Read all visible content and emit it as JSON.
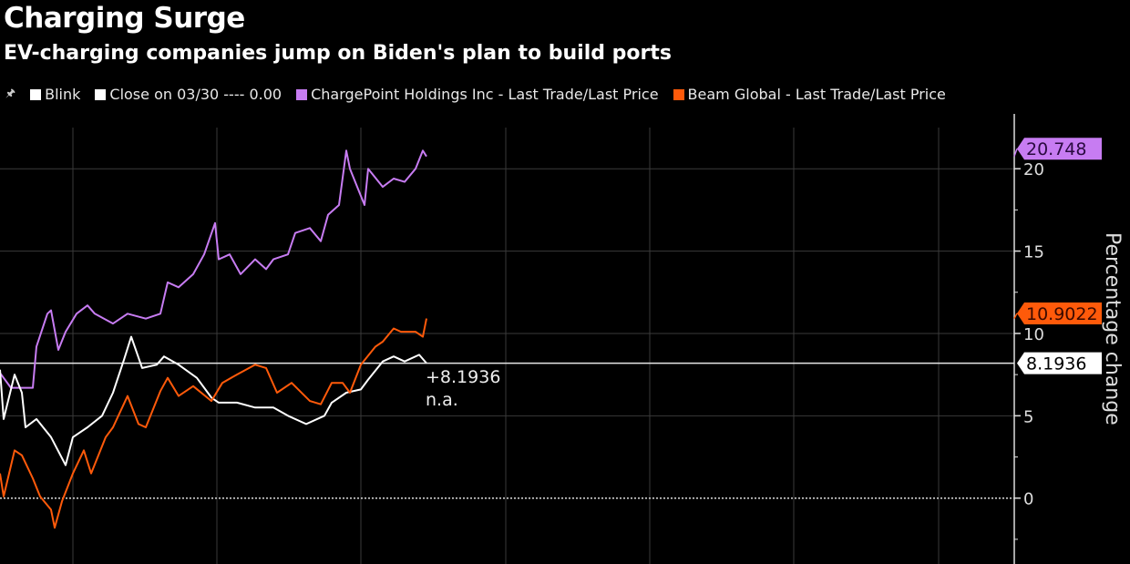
{
  "title": "Charging Surge",
  "subtitle": "EV-charging companies jump on Biden's plan to build ports",
  "legend": {
    "pin_icon": "pin-icon",
    "items": [
      {
        "label": "Blink",
        "color": "#ffffff"
      },
      {
        "label": "Close on 03/30 ---- 0.00",
        "color": "#ffffff"
      },
      {
        "label": "ChargePoint Holdings Inc - Last Trade/Last Price",
        "color": "#c77cf2"
      },
      {
        "label": "Beam Global - Last Trade/Last Price",
        "color": "#ff5a0a"
      }
    ]
  },
  "chart_data": {
    "type": "line",
    "title": "Charging Surge",
    "subtitle": "EV-charging companies jump on Biden's plan to build ports",
    "ylabel": "Percentage change",
    "xlabel": "",
    "ylim": [
      -4,
      22.5
    ],
    "xlim": [
      0,
      117
    ],
    "yticks": [
      0,
      5,
      10,
      15,
      20
    ],
    "ytick_labels": [
      "0",
      "5",
      "10",
      "15",
      "20"
    ],
    "grid": true,
    "reference_line": {
      "label": "Close on 03/30",
      "value": 0
    },
    "series": [
      {
        "name": "ChargePoint Holdings Inc - Last Trade/Last Price",
        "color": "#c77cf2",
        "last_label": "20.748",
        "x": [
          0,
          3,
          9,
          10,
          13,
          14,
          16,
          18,
          21,
          24,
          26,
          31,
          35,
          40,
          44,
          46,
          49,
          53,
          56,
          59,
          60,
          63,
          66,
          70,
          73,
          75,
          79,
          81,
          85,
          88,
          90,
          93,
          95,
          96,
          100,
          101,
          105,
          108,
          111,
          114,
          116,
          117
        ],
        "y": [
          7.6,
          6.7,
          6.7,
          9.2,
          11.2,
          11.4,
          9.0,
          10.1,
          11.2,
          11.7,
          11.2,
          10.6,
          11.2,
          10.9,
          11.2,
          13.1,
          12.8,
          13.6,
          14.8,
          16.7,
          14.5,
          14.8,
          13.6,
          14.5,
          13.9,
          14.5,
          14.8,
          16.1,
          16.4,
          15.6,
          17.2,
          17.8,
          21.1,
          20.0,
          17.8,
          20.0,
          18.9,
          19.4,
          19.2,
          20.0,
          21.1,
          20.748
        ]
      },
      {
        "name": "Blink",
        "color": "#ffffff",
        "last_label": "8.1936",
        "x": [
          0,
          1,
          4,
          6,
          7,
          10,
          14,
          18,
          20,
          24,
          28,
          31,
          34,
          36,
          39,
          43,
          45,
          49,
          54,
          58,
          60,
          65,
          70,
          75,
          79,
          84,
          89,
          91,
          95,
          99,
          101,
          105,
          108,
          111,
          115,
          117
        ],
        "y": [
          7.8,
          4.8,
          7.5,
          6.4,
          4.3,
          4.8,
          3.7,
          2.0,
          3.7,
          4.3,
          5.0,
          6.4,
          8.4,
          9.8,
          7.9,
          8.1,
          8.6,
          8.1,
          7.3,
          6.1,
          5.8,
          5.8,
          5.5,
          5.5,
          5.0,
          4.5,
          5.0,
          5.8,
          6.4,
          6.6,
          7.2,
          8.3,
          8.6,
          8.3,
          8.7,
          8.1936
        ]
      },
      {
        "name": "Beam Global - Last Trade/Last Price",
        "color": "#ff5a0a",
        "last_label": "10.9022",
        "x": [
          0,
          1,
          4,
          6,
          9,
          11,
          14,
          15,
          17,
          20,
          23,
          25,
          29,
          31,
          35,
          38,
          40,
          44,
          46,
          49,
          53,
          58,
          61,
          65,
          70,
          73,
          76,
          80,
          85,
          88,
          91,
          94,
          96,
          99,
          103,
          105,
          108,
          110,
          114,
          116,
          117
        ],
        "y": [
          1.5,
          0.1,
          2.9,
          2.6,
          1.2,
          0.1,
          -0.7,
          -1.8,
          -0.2,
          1.5,
          2.9,
          1.5,
          3.7,
          4.3,
          6.2,
          4.5,
          4.3,
          6.5,
          7.3,
          6.2,
          6.8,
          5.9,
          7.0,
          7.5,
          8.1,
          7.9,
          6.4,
          7.0,
          5.9,
          5.7,
          7.0,
          7.0,
          6.4,
          8.1,
          9.2,
          9.5,
          10.3,
          10.1,
          10.1,
          9.8,
          10.9022
        ]
      }
    ],
    "annotations": [
      "+8.1936",
      "n.a."
    ]
  }
}
